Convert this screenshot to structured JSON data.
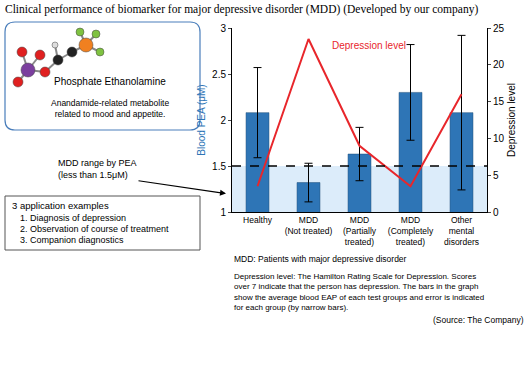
{
  "title": "Clinical performance of biomarker for major depressive disorder (MDD) (Developed by our company)",
  "molecule": {
    "name": "Phosphate Ethanolamine",
    "description": "Anandamide-related metabolite\nrelated to mood and appetite."
  },
  "range_note": "MDD range by PEA\n(less than 1.5μM)",
  "applications": {
    "title": "3 application examples",
    "items": [
      "1. Diagnosis of depression",
      "2. Observation of course of treatment",
      "3. Companion diagnostics"
    ]
  },
  "notes": [
    "MDD: Patients with major depressive disorder",
    "Depression level: The Hamilton Rating Scale for Depression. Scores\nover 7 indicate that the person has depression. The bars in the graph\nshow the average blood EAP of each test groups and error is indicated\nfor each group (by narrow bars)."
  ],
  "source": "(Source: The Company)",
  "chart_data": {
    "type": "bar",
    "categories": [
      "Healthy",
      "MDD\n(Not treated)",
      "MDD\n(Partially\ntreated)",
      "MDD\n(Completely\ntreated)",
      "Other\nmental\ndisorders"
    ],
    "series": [
      {
        "name": "Blood PEA (μM)",
        "type": "bar",
        "color": "#2e75b6",
        "values": [
          2.08,
          1.32,
          1.63,
          2.3,
          2.08
        ],
        "errors": [
          0.49,
          0.21,
          0.29,
          0.52,
          0.84
        ]
      },
      {
        "name": "Depression level",
        "type": "line",
        "axis": "y2",
        "color": "#e8262b",
        "values": [
          3.5,
          23.5,
          9,
          3.5,
          16
        ]
      }
    ],
    "y2_label": "Depression level",
    "ylim": [
      1,
      3
    ],
    "yticks": [
      1,
      1.5,
      2,
      2.5,
      3
    ],
    "y2lim": [
      0,
      25
    ],
    "y2ticks": [
      0,
      5,
      10,
      15,
      20,
      25
    ],
    "threshold": 1.5,
    "grid": false
  }
}
